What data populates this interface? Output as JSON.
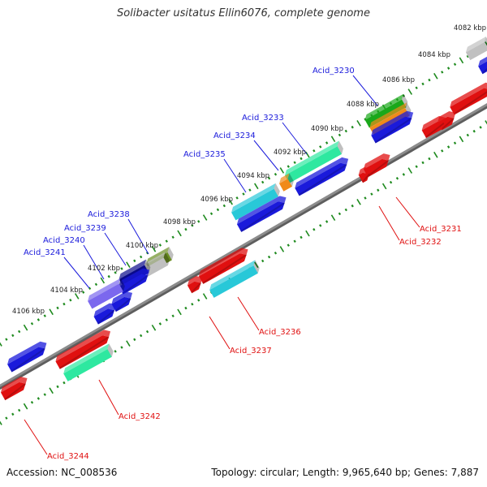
{
  "header": {
    "title": "Solibacter usitatus Ellin6076, complete genome"
  },
  "footer": {
    "accession": "Accession: NC_008536",
    "summary": "Topology: circular; Length: 9,965,640 bp; Genes: 7,887"
  },
  "colors": {
    "upper_label": "#1a1adb",
    "lower_label": "#e01010",
    "tick": "#1e8a1e",
    "backbone": "#8c8c8c",
    "leader_upper": "#1a1adb",
    "leader_lower": "#e01010"
  },
  "scale_ticks": [
    {
      "label": "4082 kbp"
    },
    {
      "label": "4084 kbp"
    },
    {
      "label": "4086 kbp"
    },
    {
      "label": "4088 kbp"
    },
    {
      "label": "4090 kbp"
    },
    {
      "label": "4092 kbp"
    },
    {
      "label": "4094 kbp"
    },
    {
      "label": "4096 kbp"
    },
    {
      "label": "4098 kbp"
    },
    {
      "label": "4100 kbp"
    },
    {
      "label": "4102 kbp"
    },
    {
      "label": "4104 kbp"
    },
    {
      "label": "4106 kbp"
    }
  ],
  "gene_labels_upper": [
    {
      "label": "Acid_3230"
    },
    {
      "label": "Acid_3233"
    },
    {
      "label": "Acid_3234"
    },
    {
      "label": "Acid_3235"
    },
    {
      "label": "Acid_3238"
    },
    {
      "label": "Acid_3239"
    },
    {
      "label": "Acid_3240"
    },
    {
      "label": "Acid_3241"
    }
  ],
  "gene_labels_lower": [
    {
      "label": "Acid_3231"
    },
    {
      "label": "Acid_3232"
    },
    {
      "label": "Acid_3236"
    },
    {
      "label": "Acid_3237"
    },
    {
      "label": "Acid_3242"
    },
    {
      "label": "Acid_3244"
    }
  ],
  "features": [
    {
      "color": "#c0c0c0",
      "shape": "box"
    },
    {
      "color": "#1a1adb",
      "shape": "arrow"
    },
    {
      "color": "#1aa81a",
      "shape": "box"
    },
    {
      "color": "#f08a1a",
      "shape": "box"
    },
    {
      "color": "#1a1adb",
      "shape": "arrow"
    },
    {
      "color": "#e01010",
      "shape": "arrow"
    },
    {
      "color": "#e01010",
      "shape": "arrow"
    },
    {
      "color": "#e01010",
      "shape": "arrow"
    },
    {
      "color": "#2ee8a0",
      "shape": "box"
    },
    {
      "color": "#1a1adb",
      "shape": "arrow"
    },
    {
      "color": "#f08a1a",
      "shape": "box"
    },
    {
      "color": "#e01010",
      "shape": "arrow"
    },
    {
      "color": "#e01010",
      "shape": "arrow"
    },
    {
      "color": "#28c8d8",
      "shape": "box"
    },
    {
      "color": "#1a1adb",
      "shape": "arrow"
    },
    {
      "color": "#6b8e23",
      "shape": "box"
    },
    {
      "color": "#c0c0c0",
      "shape": "box"
    },
    {
      "color": "#0a0a8a",
      "shape": "box"
    },
    {
      "color": "#1a1adb",
      "shape": "arrow"
    },
    {
      "color": "#7b68ee",
      "shape": "box"
    },
    {
      "color": "#1a1adb",
      "shape": "arrow"
    },
    {
      "color": "#1a1adb",
      "shape": "arrow"
    },
    {
      "color": "#e01010",
      "shape": "arrow"
    },
    {
      "color": "#28c8d8",
      "shape": "box"
    },
    {
      "color": "#e01010",
      "shape": "arrow"
    },
    {
      "color": "#1a1adb",
      "shape": "arrow"
    },
    {
      "color": "#e01010",
      "shape": "arrow"
    },
    {
      "color": "#2ee8a0",
      "shape": "box"
    },
    {
      "color": "#e01010",
      "shape": "arrow"
    }
  ]
}
